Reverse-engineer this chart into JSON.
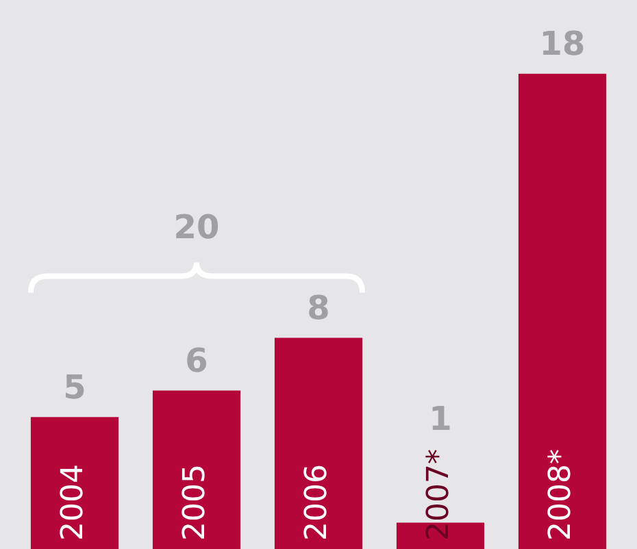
{
  "chart_data": {
    "type": "bar",
    "categories": [
      "2004",
      "2005",
      "2006",
      "2007*",
      "2008*"
    ],
    "values": [
      5,
      6,
      8,
      1,
      18
    ],
    "color": "#b5063a",
    "data_labels": true,
    "annotations": [
      "20"
    ]
  }
}
